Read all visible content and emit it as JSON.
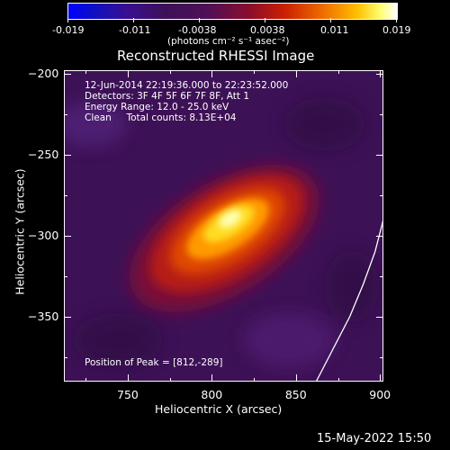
{
  "chart_data": {
    "type": "heatmap",
    "title": "Reconstructed RHESSI Image",
    "xlabel": "Heliocentric X (arcsec)",
    "ylabel": "Heliocentric Y (arcsec)",
    "xlim": [
      712,
      902
    ],
    "ylim": [
      -390,
      -198
    ],
    "x_ticks": [
      750,
      800,
      850,
      900
    ],
    "y_ticks": [
      -200,
      -250,
      -300,
      -350
    ],
    "colorbar": {
      "min": -0.019,
      "max": 0.019,
      "tick_labels": [
        "-0.019",
        "-0.011",
        "-0.0038",
        "0.0038",
        "0.011",
        "0.019"
      ],
      "unit_label": "(photons cm⁻² s⁻¹ asec⁻²)",
      "colormap": "blue-purple-red-yellow-white"
    },
    "annotations": [
      "12-Jun-2014 22:19:36.000 to 22:23:52.000",
      "Detectors: 3F 4F 5F 6F 7F 8F, Att 1",
      "Energy Range: 12.0 - 25.0 keV",
      "Clean     Total counts: 8.13E+04"
    ],
    "peak_label": "Position of Peak = [812,-289]",
    "peak": [
      812,
      -289
    ],
    "limb_curve": [
      [
        862,
        -390
      ],
      [
        872,
        -370
      ],
      [
        882,
        -350
      ],
      [
        890,
        -330
      ],
      [
        897,
        -310
      ],
      [
        902,
        -290
      ]
    ]
  },
  "footer": {
    "timestamp": "15-May-2022 15:50"
  },
  "colors": {
    "background": "#000000",
    "map_background": "#3d1156",
    "limb": "#ffffff"
  }
}
